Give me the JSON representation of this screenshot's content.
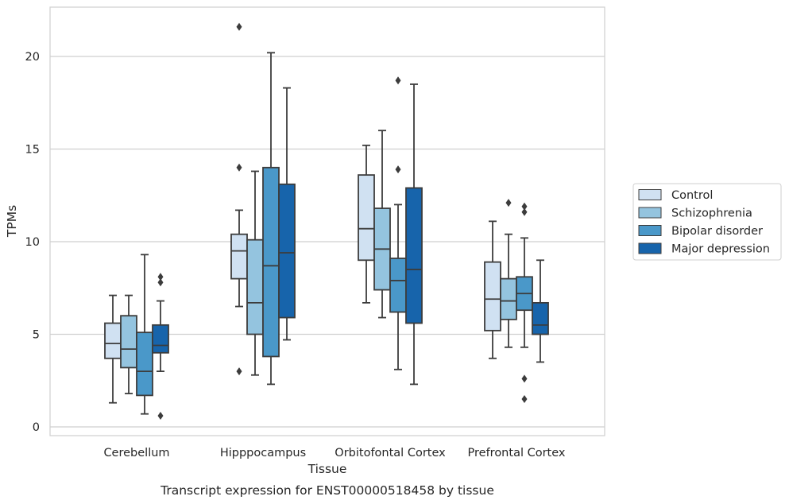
{
  "chart_data": {
    "type": "box",
    "caption": "Transcript expression for ENST00000518458 by tissue",
    "xlabel": "Tissue",
    "ylabel": "TPMs",
    "ylim": [
      -0.4,
      22.6
    ],
    "yticks": [
      0,
      5,
      10,
      15,
      20
    ],
    "grid": "horizontal",
    "legend_position": "right",
    "categories": [
      "Cerebellum",
      "Hipppocampus",
      "Orbitofontal Cortex",
      "Prefrontal Cortex"
    ],
    "series": [
      {
        "name": "Control",
        "color": "#d0e1f2",
        "boxes": [
          {
            "whislo": 1.3,
            "q1": 3.7,
            "med": 4.5,
            "q3": 5.6,
            "whishi": 7.1,
            "fliers": []
          },
          {
            "whislo": 6.5,
            "q1": 8.0,
            "med": 9.5,
            "q3": 10.4,
            "whishi": 11.7,
            "fliers": [
              3.0,
              14.0,
              21.6
            ]
          },
          {
            "whislo": 6.7,
            "q1": 9.0,
            "med": 10.7,
            "q3": 13.6,
            "whishi": 15.2,
            "fliers": []
          },
          {
            "whislo": 3.7,
            "q1": 5.2,
            "med": 6.9,
            "q3": 8.9,
            "whishi": 11.1,
            "fliers": []
          }
        ]
      },
      {
        "name": "Schizophrenia",
        "color": "#94c4df",
        "boxes": [
          {
            "whislo": 1.8,
            "q1": 3.2,
            "med": 4.2,
            "q3": 6.0,
            "whishi": 7.1,
            "fliers": []
          },
          {
            "whislo": 2.8,
            "q1": 5.0,
            "med": 6.7,
            "q3": 10.1,
            "whishi": 13.8,
            "fliers": []
          },
          {
            "whislo": 5.9,
            "q1": 7.4,
            "med": 9.6,
            "q3": 11.8,
            "whishi": 16.0,
            "fliers": []
          },
          {
            "whislo": 4.3,
            "q1": 5.8,
            "med": 6.8,
            "q3": 8.0,
            "whishi": 10.4,
            "fliers": [
              12.1
            ]
          }
        ]
      },
      {
        "name": "Bipolar disorder",
        "color": "#4a98c9",
        "boxes": [
          {
            "whislo": 0.7,
            "q1": 1.7,
            "med": 3.0,
            "q3": 5.1,
            "whishi": 9.3,
            "fliers": []
          },
          {
            "whislo": 2.3,
            "q1": 3.8,
            "med": 8.7,
            "q3": 14.0,
            "whishi": 20.2,
            "fliers": []
          },
          {
            "whislo": 3.1,
            "q1": 6.2,
            "med": 7.9,
            "q3": 9.1,
            "whishi": 12.0,
            "fliers": [
              13.9,
              18.7
            ]
          },
          {
            "whislo": 4.3,
            "q1": 6.3,
            "med": 7.2,
            "q3": 8.1,
            "whishi": 10.2,
            "fliers": [
              1.5,
              2.6,
              11.6,
              11.9
            ]
          }
        ]
      },
      {
        "name": "Major depression",
        "color": "#1764ab",
        "boxes": [
          {
            "whislo": 3.0,
            "q1": 4.0,
            "med": 4.4,
            "q3": 5.5,
            "whishi": 6.8,
            "fliers": [
              0.6,
              7.8,
              8.1
            ]
          },
          {
            "whislo": 4.7,
            "q1": 5.9,
            "med": 9.4,
            "q3": 13.1,
            "whishi": 18.3,
            "fliers": []
          },
          {
            "whislo": 2.3,
            "q1": 5.6,
            "med": 8.5,
            "q3": 12.9,
            "whishi": 18.5,
            "fliers": []
          },
          {
            "whislo": 3.5,
            "q1": 5.0,
            "med": 5.5,
            "q3": 6.7,
            "whishi": 9.0,
            "fliers": []
          }
        ]
      }
    ]
  },
  "colors": {
    "box_edge": "#3c3c3c",
    "grid": "#cfcfcf",
    "frame": "#cfcfcf"
  }
}
